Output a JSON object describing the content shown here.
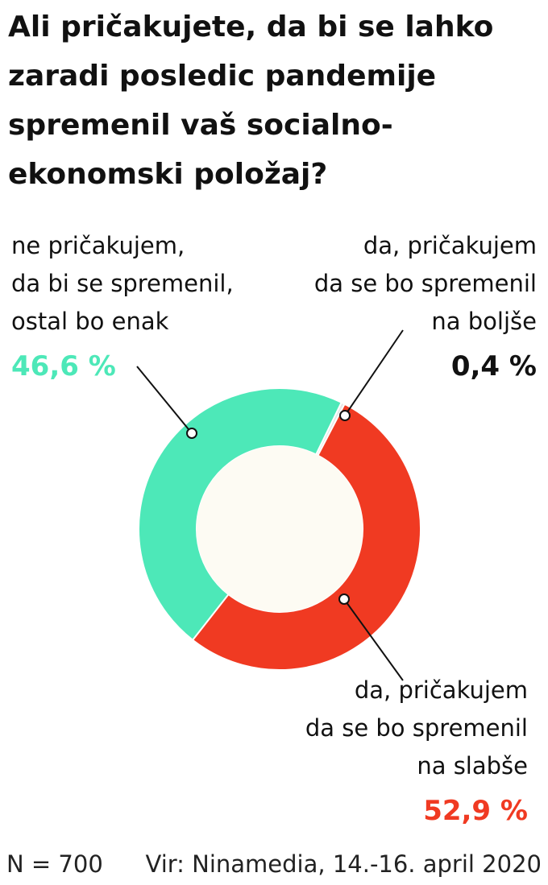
{
  "chart_data": {
    "type": "pie",
    "title": [
      "Ali pričakujete, da bi se lahko",
      "zaradi posledic pandemije",
      "spremenil vaš socialno-",
      "ekonomski položaj?"
    ],
    "categories": [
      [
        "da, pričakujem",
        "da se bo spremenil",
        "na boljše"
      ],
      [
        "da, pričakujem",
        "da se bo spremenil",
        "na slabše"
      ],
      [
        "ne pričakujem,",
        "da bi se spremenil,",
        "ostal bo enak"
      ]
    ],
    "values": [
      0.4,
      52.9,
      46.6
    ],
    "value_labels": [
      "0,4 %",
      "52,9 %",
      "46,6 %"
    ],
    "colors": [
      "#e6e6e6",
      "#f03a22",
      "#4de8b8"
    ],
    "label_colors": [
      "#111111",
      "#f03a22",
      "#4de8b8"
    ],
    "donut": true,
    "sample": "N = 700",
    "source": "Vir: Ninamedia, 14.-16. april 2020"
  }
}
